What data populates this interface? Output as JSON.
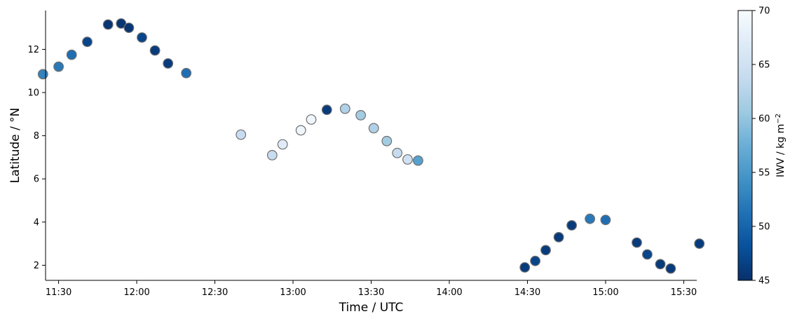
{
  "chart_data": {
    "type": "scatter",
    "xlabel": "Time / UTC",
    "ylabel": "Latitude / °N",
    "colorbar_label": "IWV / kg m",
    "colorbar_label_sup": "−2",
    "colormap": "Blues_r",
    "color_range": [
      45,
      70
    ],
    "colorbar_ticks": [
      "45",
      "50",
      "55",
      "60",
      "65",
      "70"
    ],
    "xlim": [
      "11:25",
      "15:35"
    ],
    "ylim": [
      1.3,
      13.8
    ],
    "x_ticks": [
      "11:30",
      "12:00",
      "12:30",
      "13:00",
      "13:30",
      "14:00",
      "14:30",
      "15:00",
      "15:30"
    ],
    "y_ticks": [
      "2",
      "4",
      "6",
      "8",
      "10",
      "12"
    ],
    "grid": false,
    "points": [
      {
        "t": "11:24",
        "lat": 10.85,
        "iwv": 53
      },
      {
        "t": "11:30",
        "lat": 11.2,
        "iwv": 52
      },
      {
        "t": "11:35",
        "lat": 11.75,
        "iwv": 51
      },
      {
        "t": "11:41",
        "lat": 12.35,
        "iwv": 47
      },
      {
        "t": "11:49",
        "lat": 13.15,
        "iwv": 45.5
      },
      {
        "t": "11:54",
        "lat": 13.2,
        "iwv": 45.5
      },
      {
        "t": "11:57",
        "lat": 13.0,
        "iwv": 45.5
      },
      {
        "t": "12:02",
        "lat": 12.55,
        "iwv": 47
      },
      {
        "t": "12:07",
        "lat": 11.95,
        "iwv": 46
      },
      {
        "t": "12:12",
        "lat": 11.35,
        "iwv": 46
      },
      {
        "t": "12:19",
        "lat": 10.9,
        "iwv": 51
      },
      {
        "t": "12:40",
        "lat": 8.05,
        "iwv": 64
      },
      {
        "t": "12:52",
        "lat": 7.1,
        "iwv": 64
      },
      {
        "t": "12:56",
        "lat": 7.6,
        "iwv": 67
      },
      {
        "t": "13:03",
        "lat": 8.25,
        "iwv": 69
      },
      {
        "t": "13:07",
        "lat": 8.75,
        "iwv": 69
      },
      {
        "t": "13:13",
        "lat": 9.2,
        "iwv": 46
      },
      {
        "t": "13:20",
        "lat": 9.25,
        "iwv": 62
      },
      {
        "t": "13:26",
        "lat": 8.95,
        "iwv": 61
      },
      {
        "t": "13:31",
        "lat": 8.35,
        "iwv": 62
      },
      {
        "t": "13:36",
        "lat": 7.75,
        "iwv": 61
      },
      {
        "t": "13:40",
        "lat": 7.2,
        "iwv": 64
      },
      {
        "t": "13:44",
        "lat": 6.9,
        "iwv": 65
      },
      {
        "t": "13:48",
        "lat": 6.85,
        "iwv": 56
      },
      {
        "t": "14:29",
        "lat": 1.9,
        "iwv": 46
      },
      {
        "t": "14:33",
        "lat": 2.2,
        "iwv": 47
      },
      {
        "t": "14:37",
        "lat": 2.7,
        "iwv": 46
      },
      {
        "t": "14:42",
        "lat": 3.3,
        "iwv": 46
      },
      {
        "t": "14:47",
        "lat": 3.85,
        "iwv": 46
      },
      {
        "t": "14:54",
        "lat": 4.15,
        "iwv": 52
      },
      {
        "t": "15:00",
        "lat": 4.1,
        "iwv": 51
      },
      {
        "t": "15:12",
        "lat": 3.05,
        "iwv": 46
      },
      {
        "t": "15:16",
        "lat": 2.5,
        "iwv": 47
      },
      {
        "t": "15:21",
        "lat": 2.05,
        "iwv": 46
      },
      {
        "t": "15:25",
        "lat": 1.85,
        "iwv": 46
      },
      {
        "t": "15:36",
        "lat": 3.0,
        "iwv": 46
      }
    ]
  }
}
